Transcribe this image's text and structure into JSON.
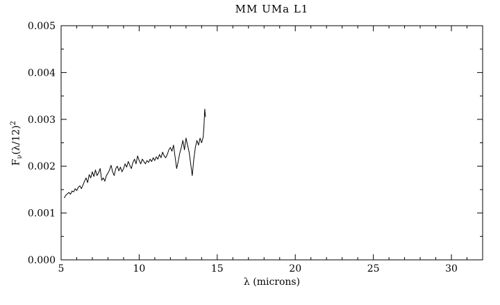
{
  "chart_data": {
    "type": "line",
    "title": "MM UMa L1",
    "xlabel": "λ (microns)",
    "ylabel": "F_ν(λ/12)^2",
    "ylabel_parts": {
      "base": "F",
      "sub": "ν",
      "mid": "(λ/12)",
      "sup": "2"
    },
    "xlim": [
      5,
      32
    ],
    "ylim": [
      0,
      0.005
    ],
    "xticks": [
      5,
      10,
      15,
      20,
      25,
      30
    ],
    "x_minor_step": 1,
    "yticks": [
      0.0,
      0.001,
      0.002,
      0.003,
      0.004,
      0.005
    ],
    "y_minor_step": 0.0005,
    "y_tick_decimals": 3,
    "line_color": "#000000",
    "series": [
      {
        "name": "spectrum",
        "x": [
          5.2,
          5.3,
          5.4,
          5.5,
          5.6,
          5.7,
          5.8,
          5.9,
          6.0,
          6.1,
          6.2,
          6.3,
          6.4,
          6.5,
          6.6,
          6.7,
          6.8,
          6.9,
          7.0,
          7.1,
          7.2,
          7.3,
          7.4,
          7.5,
          7.6,
          7.7,
          7.8,
          7.9,
          8.0,
          8.1,
          8.2,
          8.3,
          8.4,
          8.5,
          8.6,
          8.7,
          8.8,
          8.9,
          9.0,
          9.1,
          9.2,
          9.3,
          9.4,
          9.5,
          9.6,
          9.7,
          9.8,
          9.9,
          10.0,
          10.1,
          10.2,
          10.3,
          10.4,
          10.5,
          10.6,
          10.7,
          10.8,
          10.9,
          11.0,
          11.1,
          11.2,
          11.3,
          11.4,
          11.5,
          11.6,
          11.7,
          11.8,
          11.9,
          12.0,
          12.1,
          12.2,
          12.3,
          12.4,
          12.5,
          12.6,
          12.7,
          12.8,
          12.9,
          13.0,
          13.1,
          13.2,
          13.3,
          13.4,
          13.5,
          13.6,
          13.7,
          13.8,
          13.9,
          14.0,
          14.1,
          14.15,
          14.2,
          14.25
        ],
        "y": [
          0.00132,
          0.00138,
          0.00141,
          0.00144,
          0.0014,
          0.00147,
          0.00145,
          0.00152,
          0.00148,
          0.00155,
          0.00158,
          0.00152,
          0.0016,
          0.00168,
          0.00175,
          0.00165,
          0.00182,
          0.00175,
          0.00188,
          0.00178,
          0.00192,
          0.0018,
          0.00186,
          0.00195,
          0.0017,
          0.00175,
          0.00168,
          0.0018,
          0.00185,
          0.00192,
          0.00202,
          0.00188,
          0.0018,
          0.00195,
          0.002,
          0.0019,
          0.00198,
          0.00188,
          0.00195,
          0.00205,
          0.00198,
          0.0021,
          0.00202,
          0.00195,
          0.00208,
          0.00215,
          0.00205,
          0.00222,
          0.00212,
          0.00205,
          0.00215,
          0.0021,
          0.00205,
          0.00212,
          0.00208,
          0.00215,
          0.0021,
          0.00218,
          0.00212,
          0.0022,
          0.00215,
          0.00225,
          0.00218,
          0.0023,
          0.00222,
          0.00218,
          0.00225,
          0.00235,
          0.0024,
          0.00232,
          0.00245,
          0.0022,
          0.00195,
          0.0021,
          0.00228,
          0.0024,
          0.00255,
          0.00235,
          0.0026,
          0.00245,
          0.0023,
          0.00205,
          0.0018,
          0.00215,
          0.0024,
          0.00255,
          0.00245,
          0.0026,
          0.0025,
          0.00262,
          0.00285,
          0.00322,
          0.00305
        ]
      }
    ],
    "legend": "none",
    "grid": false
  }
}
